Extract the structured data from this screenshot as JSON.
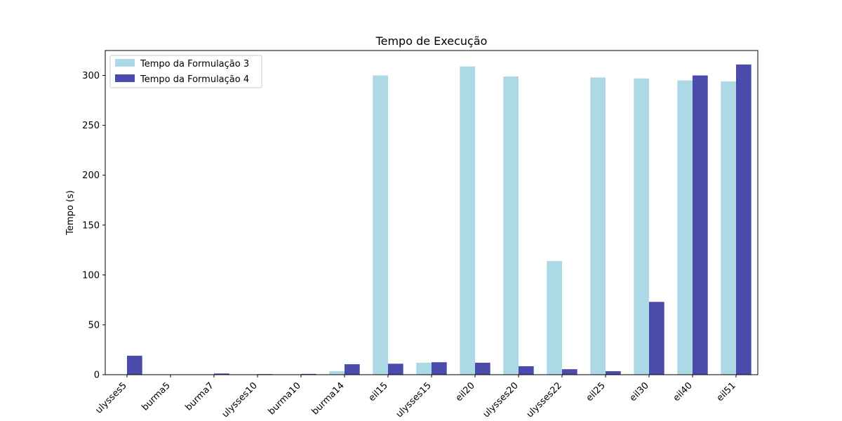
{
  "chart_data": {
    "type": "bar",
    "title": "Tempo de Execução",
    "xlabel": "",
    "ylabel": "Tempo (s)",
    "ylim": [
      0,
      325
    ],
    "yticks": [
      0,
      50,
      100,
      150,
      200,
      250,
      300
    ],
    "grid": false,
    "legend_position": "top-left",
    "categories": [
      "ulysses5",
      "burma5",
      "burma7",
      "ulysses10",
      "burma10",
      "burma14",
      "eil15",
      "ulysses15",
      "eil20",
      "ulysses20",
      "ulysses22",
      "eil25",
      "eil30",
      "eil40",
      "eil51"
    ],
    "series": [
      {
        "name": "Tempo da Formulação 3",
        "color": "#add8e6",
        "values": [
          0,
          0,
          0.3,
          0,
          0.4,
          3.5,
          300,
          12,
          309,
          299,
          114,
          298,
          297,
          295,
          294
        ]
      },
      {
        "name": "Tempo da Formulação 4",
        "color": "#4b4bab",
        "values": [
          19,
          0.1,
          1.2,
          0.6,
          0.8,
          10.5,
          11,
          12.5,
          12,
          8.5,
          5.5,
          3.5,
          73,
          300,
          311
        ]
      }
    ]
  }
}
